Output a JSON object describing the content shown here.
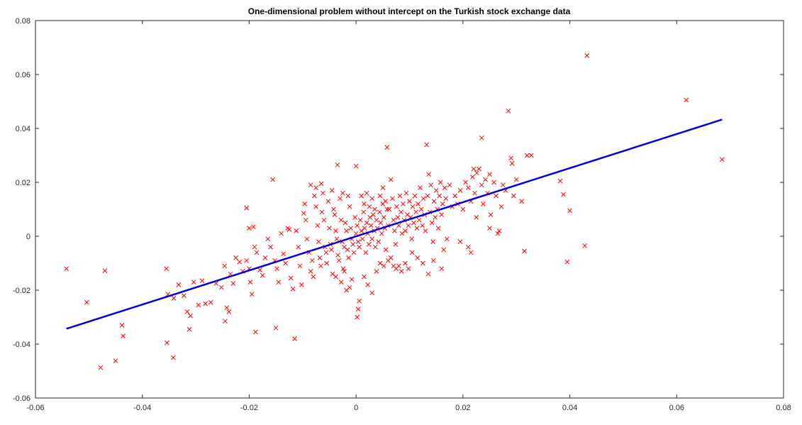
{
  "chart_data": {
    "type": "scatter",
    "title": "One-dimensional problem without intercept on the Turkish stock exchange data",
    "xlabel": "",
    "ylabel": "",
    "xlim": [
      -0.06,
      0.08
    ],
    "ylim": [
      -0.06,
      0.08
    ],
    "xticks": [
      -0.06,
      -0.04,
      -0.02,
      0,
      0.02,
      0.04,
      0.06,
      0.08
    ],
    "yticks": [
      -0.06,
      -0.04,
      -0.02,
      0,
      0.02,
      0.04,
      0.06,
      0.08
    ],
    "xtick_labels": [
      "-0.06",
      "-0.04",
      "-0.02",
      "0",
      "0.02",
      "0.04",
      "0.06",
      "0.08"
    ],
    "ytick_labels": [
      "-0.06",
      "-0.04",
      "-0.02",
      "0",
      "0.02",
      "0.04",
      "0.06",
      "0.08"
    ],
    "grid": false,
    "legend": "none",
    "series": [
      {
        "type": "scatter",
        "marker": "x",
        "color": "#ff0000",
        "points": [
          [
            -0.0542,
            -0.012
          ],
          [
            -0.0504,
            -0.0245
          ],
          [
            -0.047,
            -0.0128
          ],
          [
            -0.0478,
            -0.0487
          ],
          [
            -0.045,
            -0.0462
          ],
          [
            -0.0438,
            -0.033
          ],
          [
            -0.0436,
            -0.037
          ],
          [
            -0.0355,
            -0.012
          ],
          [
            -0.0352,
            -0.0215
          ],
          [
            -0.0354,
            -0.0395
          ],
          [
            -0.0342,
            -0.045
          ],
          [
            -0.0341,
            -0.023
          ],
          [
            -0.0332,
            -0.018
          ],
          [
            -0.0322,
            -0.022
          ],
          [
            -0.0316,
            -0.028
          ],
          [
            -0.0312,
            -0.0345
          ],
          [
            -0.031,
            -0.0295
          ],
          [
            -0.0304,
            -0.017
          ],
          [
            -0.0295,
            -0.0255
          ],
          [
            -0.0288,
            -0.0165
          ],
          [
            -0.0282,
            -0.025
          ],
          [
            -0.0272,
            -0.0245
          ],
          [
            -0.0262,
            -0.0175
          ],
          [
            -0.0252,
            -0.019
          ],
          [
            -0.0245,
            -0.0315
          ],
          [
            -0.0242,
            -0.0265
          ],
          [
            -0.0238,
            -0.028
          ],
          [
            -0.0246,
            -0.011
          ],
          [
            -0.0235,
            -0.014
          ],
          [
            -0.023,
            -0.0175
          ],
          [
            -0.0225,
            -0.008
          ],
          [
            -0.0218,
            -0.0095
          ],
          [
            -0.0212,
            -0.013
          ],
          [
            -0.0205,
            -0.009
          ],
          [
            -0.02,
            -0.012
          ],
          [
            -0.0198,
            -0.017
          ],
          [
            -0.0205,
            0.0105
          ],
          [
            -0.02,
            0.003
          ],
          [
            -0.0192,
            0.0035
          ],
          [
            -0.019,
            -0.004
          ],
          [
            -0.0186,
            -0.006
          ],
          [
            -0.018,
            -0.0125
          ],
          [
            -0.0175,
            -0.0145
          ],
          [
            -0.0188,
            -0.0355
          ],
          [
            -0.0195,
            -0.0215
          ],
          [
            -0.017,
            -0.008
          ],
          [
            -0.0165,
            -0.001
          ],
          [
            -0.016,
            -0.004
          ],
          [
            -0.0156,
            0.021
          ],
          [
            -0.0152,
            -0.009
          ],
          [
            -0.0148,
            -0.012
          ],
          [
            -0.0145,
            -0.017
          ],
          [
            -0.015,
            -0.034
          ],
          [
            -0.014,
            0.001
          ],
          [
            -0.0136,
            -0.0065
          ],
          [
            -0.0132,
            -0.01
          ],
          [
            -0.0128,
            0.003
          ],
          [
            -0.0125,
            0.0025
          ],
          [
            -0.0122,
            -0.0155
          ],
          [
            -0.0118,
            -0.0195
          ],
          [
            -0.0115,
            -0.038
          ],
          [
            -0.0112,
            0.002
          ],
          [
            -0.0108,
            -0.004
          ],
          [
            -0.0105,
            -0.011
          ],
          [
            -0.0102,
            -0.018
          ],
          [
            -0.0098,
            0.0085
          ],
          [
            -0.0096,
            0.012
          ],
          [
            -0.0094,
            0.006
          ],
          [
            -0.0092,
            -0.001
          ],
          [
            -0.0088,
            -0.006
          ],
          [
            -0.0085,
            -0.013
          ],
          [
            -0.0082,
            -0.009
          ],
          [
            -0.008,
            -0.015
          ],
          [
            -0.0078,
            0.015
          ],
          [
            -0.0075,
            0.011
          ],
          [
            -0.0072,
            0.004
          ],
          [
            -0.007,
            -0.002
          ],
          [
            -0.0068,
            -0.008
          ],
          [
            -0.0066,
            -0.011
          ],
          [
            -0.0064,
            0.009
          ],
          [
            -0.0062,
            0.016
          ],
          [
            -0.006,
            0.006
          ],
          [
            -0.0058,
            -0.004
          ],
          [
            -0.0056,
            -0.006
          ],
          [
            -0.0055,
            -0.01
          ],
          [
            -0.0085,
            0.019
          ],
          [
            -0.0075,
            0.018
          ],
          [
            -0.0065,
            0.0195
          ],
          [
            -0.0052,
            0.013
          ],
          [
            -0.005,
            0.003
          ],
          [
            -0.0048,
            -0.003
          ],
          [
            -0.0046,
            -0.005
          ],
          [
            -0.0044,
            -0.014
          ],
          [
            -0.0042,
            0.01
          ],
          [
            -0.004,
            0.008
          ],
          [
            -0.0038,
            0.002
          ],
          [
            -0.0036,
            -0.001
          ],
          [
            -0.0034,
            -0.007
          ],
          [
            -0.0032,
            -0.009
          ],
          [
            -0.003,
            0.014
          ],
          [
            -0.0028,
            0.006
          ],
          [
            -0.0026,
            -0.002
          ],
          [
            -0.0024,
            -0.012
          ],
          [
            -0.0022,
            -0.004
          ],
          [
            -0.002,
            0.005
          ],
          [
            -0.0018,
            0.002
          ],
          [
            -0.0016,
            -0.005
          ],
          [
            -0.0014,
            -0.008
          ],
          [
            -0.0012,
            0.011
          ],
          [
            -0.001,
            0.003
          ],
          [
            -0.0008,
            -0.001
          ],
          [
            -0.0006,
            -0.003
          ],
          [
            -0.0004,
            -0.006
          ],
          [
            -0.0002,
            0.007
          ],
          [
            0.0,
            0.001
          ],
          [
            -0.0035,
            0.0265
          ],
          [
            -0.0045,
            0.017
          ],
          [
            -0.0025,
            0.016
          ],
          [
            -0.0015,
            0.015
          ],
          [
            -0.0038,
            -0.015
          ],
          [
            -0.0028,
            -0.017
          ],
          [
            -0.0018,
            -0.02
          ],
          [
            -0.0012,
            -0.019
          ],
          [
            -0.0022,
            -0.013
          ],
          [
            -0.0008,
            -0.016
          ],
          [
            0.0002,
            0.004
          ],
          [
            0.0004,
            -0.002
          ],
          [
            0.0006,
            -0.004
          ],
          [
            0.0008,
            0.006
          ],
          [
            0.001,
            0.002
          ],
          [
            0.0012,
            -0.001
          ],
          [
            0.0014,
            0.009
          ],
          [
            0.0016,
            0.003
          ],
          [
            0.0018,
            -0.006
          ],
          [
            0.002,
            0.005
          ],
          [
            0.0,
            0.026
          ],
          [
            0.0002,
            -0.03
          ],
          [
            0.0004,
            -0.027
          ],
          [
            0.0006,
            -0.024
          ],
          [
            0.001,
            0.015
          ],
          [
            0.0015,
            0.012
          ],
          [
            0.002,
            0.016
          ],
          [
            0.0025,
            0.011
          ],
          [
            0.003,
            0.014
          ],
          [
            0.0035,
            0.01
          ],
          [
            0.0022,
            0.001
          ],
          [
            0.0024,
            -0.003
          ],
          [
            0.0026,
            0.007
          ],
          [
            0.0028,
            0.004
          ],
          [
            0.003,
            -0.001
          ],
          [
            0.0032,
            0.008
          ],
          [
            0.0034,
            0.002
          ],
          [
            0.0036,
            -0.004
          ],
          [
            0.0038,
            0.006
          ],
          [
            0.004,
            0.003
          ],
          [
            0.0042,
            -0.002
          ],
          [
            0.0044,
            0.009
          ],
          [
            0.0046,
            0.005
          ],
          [
            0.0048,
            0.001
          ],
          [
            0.005,
            0.012
          ],
          [
            0.0052,
            0.007
          ],
          [
            0.0054,
            0.003
          ],
          [
            0.0056,
            -0.005
          ],
          [
            0.0058,
            0.01
          ],
          [
            0.006,
            0.004
          ],
          [
            0.0015,
            -0.015
          ],
          [
            0.0022,
            -0.018
          ],
          [
            0.003,
            -0.021
          ],
          [
            0.0038,
            -0.013
          ],
          [
            0.0045,
            -0.01
          ],
          [
            0.0052,
            -0.011
          ],
          [
            0.006,
            -0.009
          ],
          [
            0.0065,
            -0.008
          ],
          [
            0.007,
            -0.011
          ],
          [
            0.0075,
            -0.012
          ],
          [
            0.0045,
            0.015
          ],
          [
            0.005,
            0.018
          ],
          [
            0.0055,
            0.013
          ],
          [
            0.0058,
            0.033
          ],
          [
            0.0062,
            0.01
          ],
          [
            0.0065,
            0.021
          ],
          [
            0.0068,
            0.014
          ],
          [
            0.007,
            0.006
          ],
          [
            0.0072,
            0.002
          ],
          [
            0.0074,
            -0.003
          ],
          [
            0.0076,
            0.011
          ],
          [
            0.0078,
            0.007
          ],
          [
            0.008,
            0.004
          ],
          [
            0.0082,
            0.015
          ],
          [
            0.0084,
            0.009
          ],
          [
            0.0086,
            0.001
          ],
          [
            0.0088,
            0.012
          ],
          [
            0.009,
            0.006
          ],
          [
            0.0092,
            0.002
          ],
          [
            0.0094,
            0.016
          ],
          [
            0.0096,
            0.008
          ],
          [
            0.0098,
            0.004
          ],
          [
            0.01,
            0.013
          ],
          [
            0.0102,
            0.007
          ],
          [
            0.0104,
            -0.001
          ],
          [
            0.0106,
            0.011
          ],
          [
            0.0108,
            0.005
          ],
          [
            0.011,
            0.015
          ],
          [
            0.0112,
            0.009
          ],
          [
            0.0114,
            0.003
          ],
          [
            0.0116,
            0.012
          ],
          [
            0.0118,
            0.006
          ],
          [
            0.012,
            0.018
          ],
          [
            0.0122,
            0.01
          ],
          [
            0.0124,
            0.004
          ],
          [
            0.0126,
            0.014
          ],
          [
            0.0128,
            0.008
          ],
          [
            0.013,
            0.002
          ],
          [
            0.0132,
            0.034
          ],
          [
            0.0134,
            0.015
          ],
          [
            0.0136,
            0.023
          ],
          [
            0.0138,
            0.009
          ],
          [
            0.014,
            0.019
          ],
          [
            0.0142,
            0.005
          ],
          [
            0.0144,
            -0.002
          ],
          [
            0.0146,
            0.013
          ],
          [
            0.0148,
            0.007
          ],
          [
            0.015,
            0.017
          ],
          [
            0.0152,
            0.01
          ],
          [
            0.0154,
            0.003
          ],
          [
            0.0156,
            0.015
          ],
          [
            0.0158,
            0.02
          ],
          [
            0.016,
            0.008
          ],
          [
            0.0162,
            0.012
          ],
          [
            0.0164,
            -0.005
          ],
          [
            0.0166,
            0.018
          ],
          [
            0.0168,
            0.014
          ],
          [
            0.017,
            -0.001
          ],
          [
            0.0175,
            0.019
          ],
          [
            0.018,
            0.011
          ],
          [
            0.008,
            -0.011
          ],
          [
            0.0085,
            -0.013
          ],
          [
            0.0092,
            -0.01
          ],
          [
            0.0098,
            -0.012
          ],
          [
            0.0105,
            -0.006
          ],
          [
            0.0115,
            -0.008
          ],
          [
            0.0125,
            -0.01
          ],
          [
            0.0135,
            -0.014
          ],
          [
            0.0145,
            -0.009
          ],
          [
            0.016,
            -0.012
          ],
          [
            0.0185,
            0.015
          ],
          [
            0.019,
            0.012
          ],
          [
            0.0195,
            0.017
          ],
          [
            0.02,
            0.01
          ],
          [
            0.0205,
            0.02
          ],
          [
            0.021,
            0.018
          ],
          [
            0.0215,
            0.013
          ],
          [
            0.0218,
            0.022
          ],
          [
            0.0222,
            0.016
          ],
          [
            0.0225,
            0.007
          ],
          [
            0.023,
            0.025
          ],
          [
            0.0235,
            0.019
          ],
          [
            0.0238,
            0.012
          ],
          [
            0.0242,
            0.021
          ],
          [
            0.0246,
            0.016
          ],
          [
            0.025,
            0.023
          ],
          [
            0.0252,
            0.008
          ],
          [
            0.0258,
            0.02
          ],
          [
            0.0262,
            0.015
          ],
          [
            0.0268,
            0.002
          ],
          [
            0.0265,
            0.001
          ],
          [
            0.0272,
            0.011
          ],
          [
            0.0275,
            0.019
          ],
          [
            0.028,
            0.017
          ],
          [
            0.0285,
            0.0465
          ],
          [
            0.029,
            0.029
          ],
          [
            0.0292,
            0.027
          ],
          [
            0.0295,
            0.015
          ],
          [
            0.03,
            0.021
          ],
          [
            0.031,
            0.013
          ],
          [
            0.0315,
            -0.0055
          ],
          [
            0.032,
            0.03
          ],
          [
            0.0328,
            0.03
          ],
          [
            0.0235,
            0.0365
          ],
          [
            0.021,
            -0.004
          ],
          [
            0.0215,
            -0.006
          ],
          [
            0.0195,
            -0.002
          ],
          [
            0.025,
            0.003
          ],
          [
            0.022,
            0.025
          ],
          [
            0.0226,
            0.0235
          ],
          [
            0.0382,
            0.0205
          ],
          [
            0.0388,
            0.0155
          ],
          [
            0.0395,
            -0.0095
          ],
          [
            0.04,
            0.0095
          ],
          [
            0.0428,
            -0.0035
          ],
          [
            0.0432,
            0.067
          ],
          [
            0.0618,
            0.0505
          ],
          [
            0.0685,
            0.0285
          ]
        ]
      },
      {
        "type": "line",
        "color": "#0000dd",
        "points": [
          [
            -0.0542,
            -0.0343
          ],
          [
            0.0685,
            0.0433
          ]
        ]
      }
    ]
  }
}
